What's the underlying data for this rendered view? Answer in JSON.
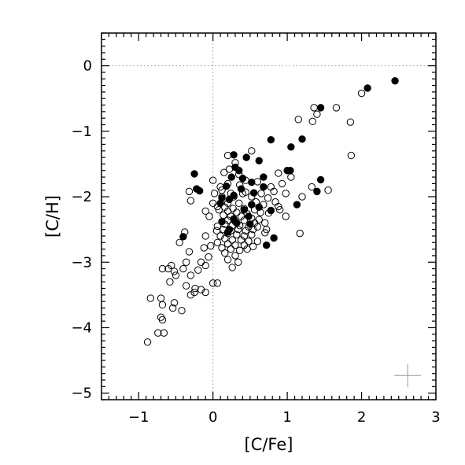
{
  "chart_data": {
    "type": "scatter",
    "xlabel": "[C/Fe]",
    "ylabel": "[C/H]",
    "xlim": [
      -1.5,
      3.0
    ],
    "ylim": [
      -5.1,
      0.5
    ],
    "xticks": [
      -1,
      0,
      1,
      2,
      3
    ],
    "yticks": [
      0,
      -1,
      -2,
      -3,
      -4,
      -5
    ],
    "xtick_labels": [
      "−1",
      "0",
      "1",
      "2",
      "3"
    ],
    "ytick_labels": [
      "0",
      "−1",
      "−2",
      "−3",
      "−4",
      "−5"
    ],
    "reference_lines": {
      "x": 0,
      "y": 0,
      "style": "dotted"
    },
    "error_cross": {
      "x": 2.62,
      "y": -4.73,
      "dx": 0.18,
      "dy": 0.18
    },
    "grid": false,
    "series": [
      {
        "marker": "filled-circle",
        "color": "#000000",
        "points": [
          [
            2.45,
            -0.23
          ],
          [
            2.08,
            -0.34
          ],
          [
            1.45,
            -0.64
          ],
          [
            0.78,
            -1.13
          ],
          [
            1.2,
            -1.12
          ],
          [
            1.05,
            -1.24
          ],
          [
            0.45,
            -1.4
          ],
          [
            0.28,
            -1.36
          ],
          [
            0.62,
            -1.45
          ],
          [
            0.3,
            -1.55
          ],
          [
            0.35,
            -1.6
          ],
          [
            -0.25,
            -1.65
          ],
          [
            0.25,
            -1.7
          ],
          [
            0.4,
            -1.72
          ],
          [
            0.52,
            -1.78
          ],
          [
            0.68,
            -1.7
          ],
          [
            1.0,
            -1.6
          ],
          [
            1.04,
            -1.6
          ],
          [
            1.45,
            -1.74
          ],
          [
            0.18,
            -1.84
          ],
          [
            0.38,
            -1.88
          ],
          [
            0.68,
            -1.85
          ],
          [
            -0.22,
            -1.88
          ],
          [
            -0.18,
            -1.91
          ],
          [
            1.4,
            -1.92
          ],
          [
            0.55,
            -1.94
          ],
          [
            0.28,
            -1.98
          ],
          [
            0.12,
            -2.02
          ],
          [
            0.22,
            -2.04
          ],
          [
            0.1,
            -2.1
          ],
          [
            0.52,
            -2.12
          ],
          [
            0.62,
            -2.16
          ],
          [
            0.42,
            -2.2
          ],
          [
            1.13,
            -2.12
          ],
          [
            0.78,
            -2.21
          ],
          [
            0.48,
            -2.3
          ],
          [
            0.28,
            -2.34
          ],
          [
            0.12,
            -2.38
          ],
          [
            0.32,
            -2.4
          ],
          [
            0.5,
            -2.42
          ],
          [
            0.22,
            -2.5
          ],
          [
            0.2,
            -2.54
          ],
          [
            0.82,
            -2.63
          ],
          [
            -0.4,
            -2.61
          ],
          [
            0.72,
            -2.74
          ]
        ]
      },
      {
        "marker": "open-circle",
        "color": "#000000",
        "points": [
          [
            2.0,
            -0.42
          ],
          [
            1.36,
            -0.64
          ],
          [
            1.66,
            -0.64
          ],
          [
            1.4,
            -0.74
          ],
          [
            1.34,
            -0.85
          ],
          [
            1.15,
            -0.82
          ],
          [
            1.85,
            -0.86
          ],
          [
            1.86,
            -1.37
          ],
          [
            0.52,
            -1.3
          ],
          [
            0.2,
            -1.37
          ],
          [
            0.3,
            -1.48
          ],
          [
            0.22,
            -1.58
          ],
          [
            0.15,
            -1.63
          ],
          [
            0.35,
            -1.66
          ],
          [
            0.0,
            -1.75
          ],
          [
            0.44,
            -1.75
          ],
          [
            0.6,
            -1.77
          ],
          [
            0.2,
            -1.8
          ],
          [
            0.36,
            -1.82
          ],
          [
            0.1,
            -1.85
          ],
          [
            0.78,
            -1.85
          ],
          [
            0.93,
            -1.8
          ],
          [
            0.82,
            -1.92
          ],
          [
            1.33,
            -1.85
          ],
          [
            1.55,
            -1.9
          ],
          [
            -0.32,
            -1.92
          ],
          [
            0.02,
            -1.95
          ],
          [
            0.24,
            -1.95
          ],
          [
            0.44,
            -1.93
          ],
          [
            0.65,
            -1.95
          ],
          [
            0.98,
            -1.95
          ],
          [
            0.12,
            -2.0
          ],
          [
            0.28,
            -2.0
          ],
          [
            0.52,
            -2.0
          ],
          [
            0.74,
            -2.02
          ],
          [
            0.84,
            -2.08
          ],
          [
            1.2,
            -2.0
          ],
          [
            -0.3,
            -2.06
          ],
          [
            0.0,
            -2.1
          ],
          [
            0.2,
            -2.1
          ],
          [
            0.35,
            -2.1
          ],
          [
            0.58,
            -2.08
          ],
          [
            0.68,
            -2.12
          ],
          [
            0.88,
            -2.15
          ],
          [
            0.06,
            -2.15
          ],
          [
            0.16,
            -2.16
          ],
          [
            0.27,
            -2.18
          ],
          [
            0.42,
            -2.18
          ],
          [
            0.56,
            -2.2
          ],
          [
            0.64,
            -2.24
          ],
          [
            0.75,
            -2.25
          ],
          [
            -0.1,
            -2.22
          ],
          [
            0.08,
            -2.2
          ],
          [
            0.2,
            -2.22
          ],
          [
            0.32,
            -2.24
          ],
          [
            0.46,
            -2.26
          ],
          [
            0.14,
            -2.28
          ],
          [
            0.24,
            -2.3
          ],
          [
            0.38,
            -2.3
          ],
          [
            0.52,
            -2.33
          ],
          [
            0.62,
            -2.35
          ],
          [
            0.2,
            -2.36
          ],
          [
            0.3,
            -2.38
          ],
          [
            0.42,
            -2.36
          ],
          [
            0.56,
            -2.4
          ],
          [
            0.7,
            -2.4
          ],
          [
            0.16,
            -2.42
          ],
          [
            0.26,
            -2.44
          ],
          [
            0.36,
            -2.44
          ],
          [
            0.48,
            -2.46
          ],
          [
            0.6,
            -2.46
          ],
          [
            0.06,
            -2.45
          ],
          [
            0.14,
            -2.5
          ],
          [
            0.24,
            -2.52
          ],
          [
            0.34,
            -2.5
          ],
          [
            0.44,
            -2.52
          ],
          [
            0.54,
            -2.5
          ],
          [
            0.72,
            -2.5
          ],
          [
            0.2,
            -2.56
          ],
          [
            0.32,
            -2.58
          ],
          [
            0.42,
            -2.6
          ],
          [
            0.52,
            -2.58
          ],
          [
            0.1,
            -2.6
          ],
          [
            1.17,
            -2.56
          ],
          [
            -0.38,
            -2.54
          ],
          [
            0.16,
            -2.64
          ],
          [
            0.26,
            -2.66
          ],
          [
            0.38,
            -2.66
          ],
          [
            0.48,
            -2.68
          ],
          [
            0.6,
            -2.68
          ],
          [
            0.06,
            -2.7
          ],
          [
            0.2,
            -2.72
          ],
          [
            0.3,
            -2.74
          ],
          [
            0.42,
            -2.74
          ],
          [
            0.54,
            -2.76
          ],
          [
            -0.03,
            -2.75
          ],
          [
            0.12,
            -2.78
          ],
          [
            0.24,
            -2.8
          ],
          [
            0.36,
            -2.82
          ],
          [
            0.46,
            -2.8
          ],
          [
            -0.12,
            -2.78
          ],
          [
            0.16,
            -2.86
          ],
          [
            0.3,
            -2.9
          ],
          [
            -0.32,
            -2.84
          ],
          [
            -0.06,
            -2.92
          ],
          [
            0.2,
            -2.96
          ],
          [
            0.34,
            -3.0
          ],
          [
            -0.16,
            -3.0
          ],
          [
            -0.36,
            -3.0
          ],
          [
            0.26,
            -3.08
          ],
          [
            -0.1,
            -3.05
          ],
          [
            -0.56,
            -3.05
          ],
          [
            -0.6,
            -3.1
          ],
          [
            -0.4,
            -3.1
          ],
          [
            -0.2,
            -3.12
          ],
          [
            -0.52,
            -3.14
          ],
          [
            -0.68,
            -3.1
          ],
          [
            -0.3,
            -3.2
          ],
          [
            -0.5,
            -3.2
          ],
          [
            0.0,
            -3.32
          ],
          [
            0.06,
            -3.32
          ],
          [
            -0.36,
            -3.36
          ],
          [
            -0.58,
            -3.3
          ],
          [
            -0.25,
            -3.46
          ],
          [
            -0.1,
            -3.46
          ],
          [
            -0.16,
            -3.42
          ],
          [
            -0.24,
            -3.4
          ],
          [
            -0.3,
            -3.5
          ],
          [
            -0.7,
            -3.55
          ],
          [
            -0.84,
            -3.55
          ],
          [
            -0.52,
            -3.62
          ],
          [
            -0.68,
            -3.65
          ],
          [
            -0.54,
            -3.7
          ],
          [
            -0.42,
            -3.74
          ],
          [
            -0.7,
            -3.84
          ],
          [
            -0.68,
            -3.88
          ],
          [
            -0.66,
            -4.08
          ],
          [
            -0.74,
            -4.08
          ],
          [
            -0.88,
            -4.22
          ],
          [
            -0.45,
            -2.7
          ],
          [
            -0.1,
            -2.6
          ],
          [
            0.05,
            -2.52
          ],
          [
            0.9,
            -2.2
          ],
          [
            0.98,
            -2.3
          ],
          [
            1.05,
            -1.7
          ],
          [
            0.88,
            -1.64
          ],
          [
            0.7,
            -2.55
          ],
          [
            0.12,
            -1.9
          ],
          [
            0.4,
            -1.95
          ],
          [
            -0.05,
            -2.3
          ]
        ]
      }
    ]
  }
}
